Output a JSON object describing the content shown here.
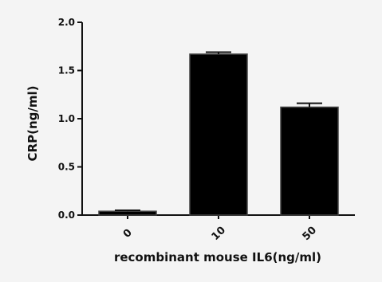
{
  "chart_data": {
    "type": "bar",
    "categories": [
      "0",
      "10",
      "50"
    ],
    "values": [
      0.04,
      1.67,
      1.12
    ],
    "errors": [
      0.01,
      0.02,
      0.04
    ],
    "xlabel": "recombinant mouse IL6(ng/ml)",
    "ylabel": "CRP(ng/ml)",
    "ylim": [
      0,
      2.0
    ],
    "yticks": [
      "0.0",
      "0.5",
      "1.0",
      "1.5",
      "2.0"
    ],
    "ytick_values": [
      0,
      0.5,
      1.0,
      1.5,
      2.0
    ],
    "bar_color": "#000000",
    "grid": false,
    "legend": "none"
  }
}
